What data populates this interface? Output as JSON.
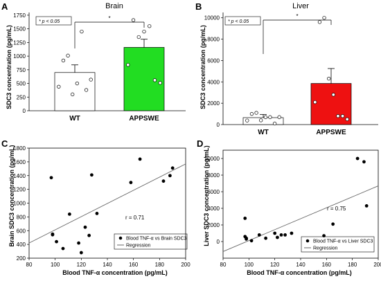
{
  "chart_data": [
    {
      "panel_letter": "A",
      "type": "bar",
      "title": "Brain",
      "ylabel": "SDC3 concentration (pg/mL)",
      "ylim": [
        0,
        1800
      ],
      "yticks": [
        0,
        250,
        500,
        750,
        1000,
        1250,
        1500,
        1750
      ],
      "categories": [
        "WT",
        "APPSWE"
      ],
      "values": [
        700,
        1160
      ],
      "errors": [
        140,
        150
      ],
      "bar_colors": [
        "#ffffff",
        "#22dd22"
      ],
      "points": [
        [
          440,
          920,
          1010,
          300,
          500,
          1450,
          380,
          570
        ],
        [
          840,
          1660,
          1350,
          1450,
          1550,
          560,
          510
        ]
      ],
      "significance": "*",
      "legend_note": "* p < 0.05"
    },
    {
      "panel_letter": "B",
      "type": "bar",
      "title": "Liver",
      "ylabel": "SDC3 concentration (pg/mL)",
      "ylim": [
        0,
        10500
      ],
      "yticks": [
        0,
        2000,
        4000,
        6000,
        8000,
        10000
      ],
      "categories": [
        "WT",
        "APPSWE"
      ],
      "values": [
        650,
        3850
      ],
      "errors": [
        300,
        1400
      ],
      "bar_colors": [
        "#ffffff",
        "#ee1111"
      ],
      "points": [
        [
          380,
          1000,
          1100,
          400,
          700,
          700,
          100,
          700
        ],
        [
          2100,
          9600,
          10000,
          4300,
          2800,
          800,
          800,
          500
        ]
      ],
      "significance": "*",
      "legend_note": "* p < 0.05"
    },
    {
      "panel_letter": "C",
      "type": "scatter",
      "xlabel": "Blood TNF-α concentration (pg/mL)",
      "ylabel": "Brain SDC3 concentration (pg/mL)",
      "xlim": [
        80,
        200
      ],
      "ylim": [
        200,
        1800
      ],
      "xticks": [
        80,
        100,
        120,
        140,
        160,
        180,
        200
      ],
      "yticks": [
        200,
        400,
        600,
        800,
        1000,
        1200,
        1400,
        1600,
        1800
      ],
      "x": [
        97,
        98,
        98,
        101,
        106,
        111,
        118,
        120,
        123,
        126,
        128,
        132,
        158,
        165,
        183,
        188,
        190
      ],
      "y": [
        1370,
        540,
        550,
        440,
        340,
        840,
        420,
        280,
        650,
        530,
        1410,
        850,
        1300,
        1640,
        1320,
        1400,
        1510
      ],
      "regression": {
        "x": [
          80,
          200
        ],
        "y": [
          420,
          1570
        ]
      },
      "annotation": "r = 0.71",
      "legend": {
        "points": "Blood TNF-α vs Brain SDC3",
        "line": "Regression"
      }
    },
    {
      "panel_letter": "D",
      "type": "scatter",
      "xlabel": "Blood TNF-α concentration (pg/mL)",
      "ylabel": "Liver SDC3 concentration (pg/mL)",
      "xlim": [
        80,
        200
      ],
      "ylim": [
        -2000,
        11000
      ],
      "xticks": [
        80,
        100,
        120,
        140,
        160,
        180,
        200
      ],
      "yticks": [
        0,
        2000,
        4000,
        6000,
        8000,
        10000
      ],
      "x": [
        97,
        97,
        98,
        98,
        102,
        108,
        113,
        120,
        122,
        125,
        128,
        133,
        158,
        165,
        184,
        189,
        191
      ],
      "y": [
        2800,
        600,
        400,
        300,
        100,
        800,
        400,
        1000,
        500,
        800,
        800,
        1000,
        700,
        2100,
        10000,
        9600,
        4300
      ],
      "regression": {
        "x": [
          80,
          200
        ],
        "y": [
          -1200,
          6700
        ]
      },
      "annotation": "r = 0.75",
      "legend": {
        "points": "Blood TNF-α vs Liver SDC3",
        "line": "Regression"
      }
    }
  ]
}
